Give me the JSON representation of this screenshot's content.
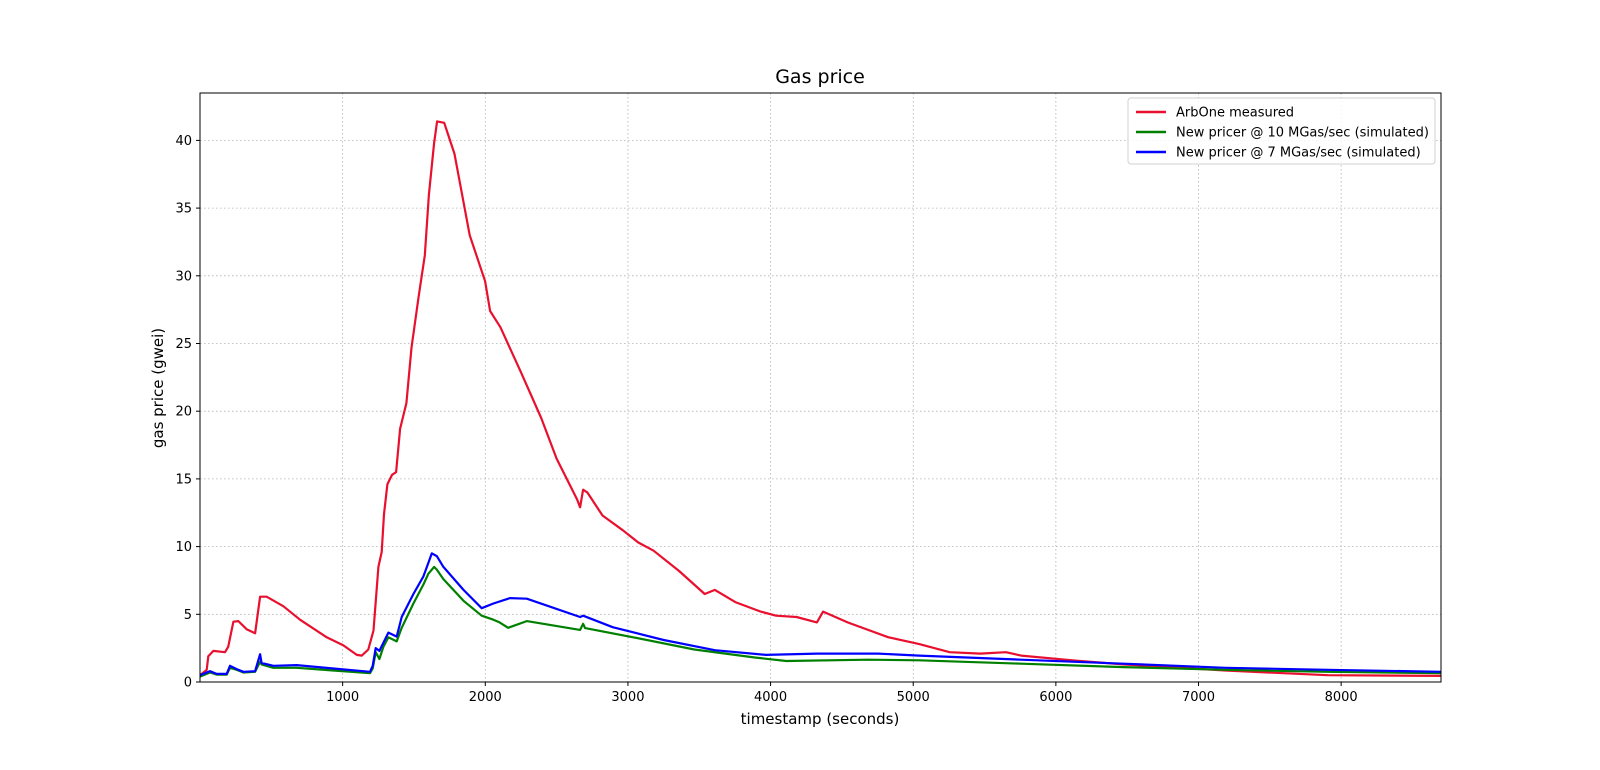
{
  "chart_data": {
    "type": "line",
    "title": "Gas price",
    "xlabel": "timestamp (seconds)",
    "ylabel": "gas price (gwei)",
    "xlim": [
      0,
      8700
    ],
    "ylim": [
      0,
      43.5
    ],
    "xticks": [
      1000,
      2000,
      3000,
      4000,
      5000,
      6000,
      7000,
      8000
    ],
    "yticks": [
      0,
      5,
      10,
      15,
      20,
      25,
      30,
      35,
      40
    ],
    "grid": true,
    "legend_position": "top-right",
    "series": [
      {
        "name": "ArbOne measured",
        "color": "#e8102e",
        "x": [
          0,
          47,
          58,
          94,
          175,
          198,
          234,
          269,
          327,
          386,
          421,
          467,
          584,
          701,
          888,
          1005,
          1099,
          1134,
          1180,
          1216,
          1251,
          1274,
          1290,
          1314,
          1347,
          1375,
          1403,
          1447,
          1483,
          1533,
          1576,
          1605,
          1641,
          1662,
          1712,
          1784,
          1891,
          1999,
          2034,
          2106,
          2249,
          2392,
          2500,
          2643,
          2665,
          2686,
          2715,
          2822,
          2965,
          3073,
          3180,
          3359,
          3538,
          3610,
          3753,
          3931,
          4039,
          4182,
          4325,
          4368,
          4540,
          4826,
          5042,
          5256,
          5470,
          5650,
          5757,
          6115,
          6294,
          6473,
          7190,
          7906,
          8700
        ],
        "y": [
          0.5,
          0.9,
          1.9,
          2.3,
          2.2,
          2.6,
          4.45,
          4.5,
          3.9,
          3.6,
          6.3,
          6.3,
          5.6,
          4.6,
          3.3,
          2.7,
          2.0,
          1.95,
          2.4,
          3.8,
          8.5,
          9.6,
          12.4,
          14.6,
          15.3,
          15.5,
          18.7,
          20.6,
          24.7,
          28.5,
          31.5,
          36,
          39.8,
          41.4,
          41.3,
          39,
          33,
          29.6,
          27.4,
          26.2,
          22.9,
          19.5,
          16.5,
          13.5,
          12.9,
          14.2,
          14,
          12.3,
          11.2,
          10.3,
          9.7,
          8.2,
          6.5,
          6.8,
          5.9,
          5.2,
          4.9,
          4.8,
          4.4,
          5.2,
          4.4,
          3.3,
          2.8,
          2.2,
          2.1,
          2.2,
          1.95,
          1.6,
          1.45,
          1.3,
          0.85,
          0.5,
          0.45
        ]
      },
      {
        "name": "New pricer @ 10 MGas/sec (simulated)",
        "color": "#008000",
        "x": [
          0,
          70,
          117,
          187,
          210,
          257,
          304,
          386,
          421,
          432,
          514,
          678,
          935,
          1192,
          1211,
          1232,
          1258,
          1286,
          1321,
          1379,
          1414,
          1496,
          1566,
          1601,
          1641,
          1660,
          1706,
          1847,
          1975,
          2057,
          2100,
          2160,
          2291,
          2665,
          2686,
          2700,
          3036,
          3465,
          3896,
          4110,
          4683,
          5042,
          5757,
          6473,
          7190,
          7906,
          8700
        ],
        "y": [
          0.4,
          0.7,
          0.55,
          0.55,
          1.05,
          0.9,
          0.7,
          0.75,
          1.5,
          1.3,
          1.05,
          1.05,
          0.85,
          0.65,
          1.0,
          2.2,
          1.7,
          2.6,
          3.3,
          3.0,
          4.0,
          5.8,
          7.2,
          8.0,
          8.5,
          8.3,
          7.6,
          6.0,
          4.9,
          4.6,
          4.4,
          4.0,
          4.5,
          3.85,
          4.3,
          3.98,
          3.3,
          2.4,
          1.8,
          1.55,
          1.65,
          1.6,
          1.35,
          1.1,
          0.9,
          0.75,
          0.65
        ]
      },
      {
        "name": "New pricer @ 7 MGas/sec (simulated)",
        "color": "#0000ff",
        "x": [
          0,
          70,
          117,
          187,
          210,
          257,
          304,
          386,
          421,
          432,
          514,
          678,
          935,
          1192,
          1211,
          1232,
          1258,
          1286,
          1321,
          1379,
          1414,
          1496,
          1566,
          1601,
          1625,
          1660,
          1706,
          1847,
          1975,
          2057,
          2174,
          2291,
          2665,
          2686,
          2893,
          3251,
          3609,
          3968,
          4325,
          4755,
          5042,
          5757,
          6473,
          7190,
          7906,
          8700
        ],
        "y": [
          0.5,
          0.8,
          0.6,
          0.6,
          1.2,
          0.95,
          0.75,
          0.8,
          2.05,
          1.4,
          1.2,
          1.25,
          1.0,
          0.75,
          1.2,
          2.5,
          2.3,
          2.9,
          3.65,
          3.35,
          4.8,
          6.5,
          7.8,
          8.8,
          9.5,
          9.3,
          8.5,
          6.8,
          5.45,
          5.8,
          6.2,
          6.15,
          4.8,
          4.9,
          4.05,
          3.1,
          2.35,
          2.0,
          2.1,
          2.1,
          1.95,
          1.65,
          1.35,
          1.05,
          0.9,
          0.75
        ]
      }
    ]
  }
}
